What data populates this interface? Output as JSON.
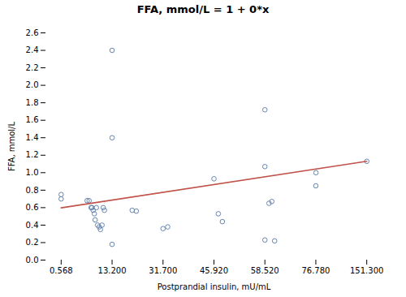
{
  "chart_data": {
    "type": "scatter",
    "title": "FFA, mmol/L = 1 + 0*x",
    "xlabel": "Postprandial insulin, mU/mL",
    "ylabel": "FFA, mmol/L",
    "series": [
      {
        "type": "scatter",
        "color": "#6685b0",
        "marker": "circle",
        "x": [
          0.568,
          0.568,
          7.0,
          7.5,
          8.0,
          8.2,
          8.5,
          8.8,
          9.0,
          9.3,
          9.6,
          10.0,
          10.3,
          10.7,
          11.0,
          11.3,
          13.2,
          13.2,
          13.2,
          20.5,
          22.0,
          31.7,
          33.0,
          45.92,
          47.0,
          48.0,
          58.52,
          58.52,
          58.52,
          60.0,
          61.0,
          62.0,
          76.78,
          77.0,
          151.3
        ],
        "values": [
          0.75,
          0.7,
          0.68,
          0.68,
          0.6,
          0.6,
          0.57,
          0.53,
          0.46,
          0.6,
          0.4,
          0.38,
          0.35,
          0.4,
          0.6,
          0.57,
          2.4,
          1.4,
          0.18,
          0.57,
          0.56,
          0.36,
          0.38,
          0.93,
          0.53,
          0.44,
          1.72,
          1.07,
          0.23,
          0.65,
          0.67,
          0.22,
          0.85,
          1.0,
          1.13
        ]
      },
      {
        "type": "line",
        "color": "#c0534a",
        "line_style": "solid",
        "x": [
          0.568,
          151.3
        ],
        "values": [
          0.598,
          1.13
        ]
      }
    ],
    "xlim": [
      0.568,
      151.3
    ],
    "xticks": [
      0.568,
      {
        "value": 13.2,
        "label": "13.200"
      },
      {
        "value": 31.7,
        "label": "31.700"
      },
      {
        "value": 45.92,
        "label": "45.920"
      },
      {
        "value": 58.52,
        "label": "58.520"
      },
      {
        "value": 76.78,
        "label": "76.780"
      },
      {
        "value": 151.3,
        "label": "151.300"
      }
    ],
    "ylim": [
      0.0,
      2.6
    ],
    "yticks": [
      {
        "value": 0.0,
        "label": "0.0"
      },
      0.2,
      0.4,
      0.6,
      0.8,
      {
        "value": 1.0,
        "label": "1.0"
      },
      1.2,
      1.4,
      1.6,
      1.8,
      {
        "value": 2.0,
        "label": "2.0"
      },
      2.2,
      2.4,
      2.6
    ],
    "grid": false
  }
}
